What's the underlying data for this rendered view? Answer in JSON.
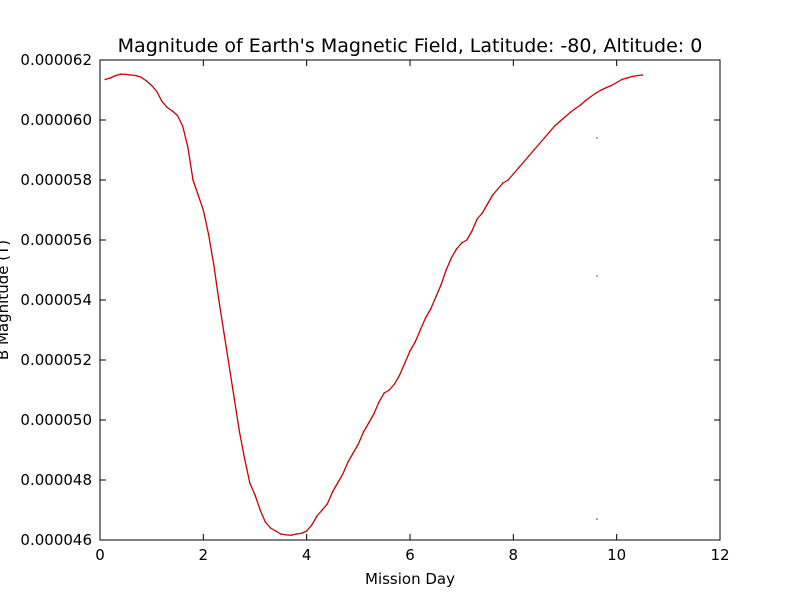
{
  "chart_data": {
    "type": "line",
    "title": "Magnitude of Earth's Magnetic Field, Latitude: -80, Altitude: 0",
    "xlabel": "Mission Day",
    "ylabel": "B Magnitude (T)",
    "xlim": [
      0,
      12
    ],
    "ylim": [
      4.6e-05,
      6.2e-05
    ],
    "x_ticks": [
      0,
      2,
      4,
      6,
      8,
      10,
      12
    ],
    "x_tick_labels": [
      "0",
      "2",
      "4",
      "6",
      "8",
      "10",
      "12"
    ],
    "y_ticks": [
      4.6e-05,
      4.8e-05,
      5e-05,
      5.2e-05,
      5.4e-05,
      5.6e-05,
      5.8e-05,
      6e-05,
      6.2e-05
    ],
    "y_tick_labels": [
      "0.000046",
      "0.000048",
      "0.000050",
      "0.000052",
      "0.000054",
      "0.000056",
      "0.000058",
      "0.000060",
      "0.000062"
    ],
    "grid": false,
    "series": [
      {
        "color": "#cc0000",
        "x": [
          0.1,
          0.2,
          0.3,
          0.4,
          0.5,
          0.6,
          0.7,
          0.8,
          0.9,
          1.0,
          1.1,
          1.2,
          1.3,
          1.4,
          1.5,
          1.6,
          1.7,
          1.8,
          1.9,
          2.0,
          2.1,
          2.2,
          2.3,
          2.4,
          2.5,
          2.6,
          2.7,
          2.8,
          2.9,
          3.0,
          3.1,
          3.2,
          3.3,
          3.4,
          3.5,
          3.6,
          3.7,
          3.8,
          3.9,
          4.0,
          4.1,
          4.2,
          4.3,
          4.4,
          4.5,
          4.6,
          4.7,
          4.8,
          4.9,
          5.0,
          5.1,
          5.2,
          5.3,
          5.4,
          5.5,
          5.6,
          5.7,
          5.8,
          5.9,
          6.0,
          6.1,
          6.2,
          6.3,
          6.4,
          6.5,
          6.6,
          6.7,
          6.8,
          6.9,
          7.0,
          7.1,
          7.2,
          7.3,
          7.4,
          7.5,
          7.6,
          7.7,
          7.8,
          7.9,
          8.0,
          8.1,
          8.2,
          8.3,
          8.4,
          8.5,
          8.6,
          8.7,
          8.8,
          8.9,
          9.0,
          9.1,
          9.2,
          9.3,
          9.4,
          9.5,
          9.6,
          9.7,
          9.8,
          9.9,
          10.0,
          10.1,
          10.2,
          10.3,
          10.4,
          10.5
        ],
        "y": [
          6.135e-05,
          6.14e-05,
          6.148e-05,
          6.153e-05,
          6.152e-05,
          6.15e-05,
          6.148e-05,
          6.142e-05,
          6.13e-05,
          6.115e-05,
          6.095e-05,
          6.062e-05,
          6.042e-05,
          6.03e-05,
          6.015e-05,
          5.98e-05,
          5.91e-05,
          5.8e-05,
          5.75e-05,
          5.7e-05,
          5.62e-05,
          5.52e-05,
          5.4e-05,
          5.29e-05,
          5.18e-05,
          5.07e-05,
          4.96e-05,
          4.87e-05,
          4.79e-05,
          4.75e-05,
          4.7e-05,
          4.66e-05,
          4.64e-05,
          4.63e-05,
          4.62e-05,
          4.617e-05,
          4.616e-05,
          4.62e-05,
          4.622e-05,
          4.63e-05,
          4.65e-05,
          4.68e-05,
          4.7e-05,
          4.72e-05,
          4.76e-05,
          4.79e-05,
          4.82e-05,
          4.86e-05,
          4.89e-05,
          4.92e-05,
          4.96e-05,
          4.99e-05,
          5.02e-05,
          5.06e-05,
          5.09e-05,
          5.1e-05,
          5.12e-05,
          5.15e-05,
          5.19e-05,
          5.23e-05,
          5.26e-05,
          5.3e-05,
          5.34e-05,
          5.37e-05,
          5.41e-05,
          5.45e-05,
          5.5e-05,
          5.54e-05,
          5.57e-05,
          5.59e-05,
          5.6e-05,
          5.63e-05,
          5.67e-05,
          5.69e-05,
          5.72e-05,
          5.75e-05,
          5.77e-05,
          5.79e-05,
          5.8e-05,
          5.82e-05,
          5.84e-05,
          5.86e-05,
          5.88e-05,
          5.9e-05,
          5.92e-05,
          5.94e-05,
          5.96e-05,
          5.98e-05,
          5.995e-05,
          6.01e-05,
          6.025e-05,
          6.038e-05,
          6.05e-05,
          6.065e-05,
          6.078e-05,
          6.09e-05,
          6.1e-05,
          6.108e-05,
          6.115e-05,
          6.125e-05,
          6.135e-05,
          6.14e-05,
          6.145e-05,
          6.148e-05,
          6.15e-05
        ]
      }
    ],
    "stray_points": [
      {
        "x": 9.62,
        "y": 5.94e-05
      },
      {
        "x": 9.62,
        "y": 5.48e-05
      },
      {
        "x": 9.62,
        "y": 4.67e-05
      }
    ]
  }
}
